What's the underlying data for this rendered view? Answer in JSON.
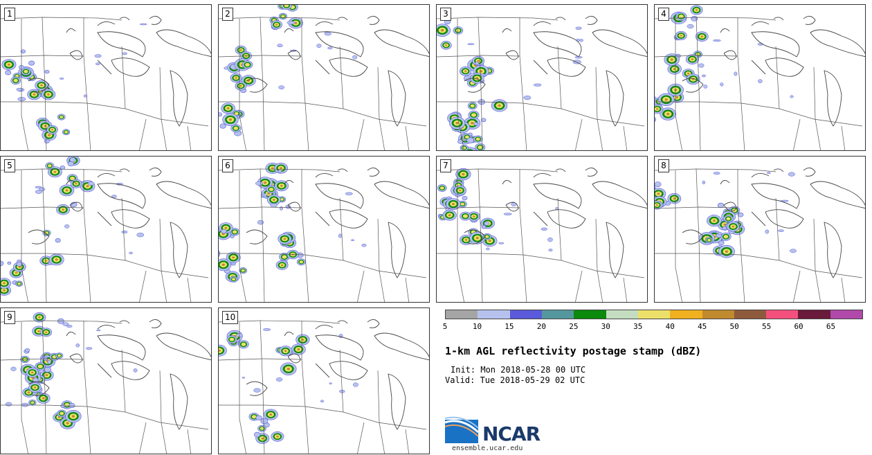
{
  "panels": [
    {
      "label": "1"
    },
    {
      "label": "2"
    },
    {
      "label": "3"
    },
    {
      "label": "4"
    },
    {
      "label": "5"
    },
    {
      "label": "6"
    },
    {
      "label": "7"
    },
    {
      "label": "8"
    },
    {
      "label": "9"
    },
    {
      "label": "10"
    }
  ],
  "colorbar": {
    "colors": [
      "#a5a5a5",
      "#b6c2ed",
      "#5a5ada",
      "#55979e",
      "#0b8a0b",
      "#c4ddc0",
      "#ede06a",
      "#f0b020",
      "#c08a2e",
      "#8e5a3c",
      "#f4507e",
      "#6a1a3a",
      "#b049a9"
    ],
    "ticks": [
      "5",
      "10",
      "15",
      "20",
      "25",
      "30",
      "35",
      "40",
      "45",
      "50",
      "55",
      "60",
      "65"
    ]
  },
  "title": "1-km AGL reflectivity postage stamp (dBZ)",
  "init": "Init: Mon 2018-05-28 00 UTC",
  "valid": "Valid: Tue 2018-05-29 02 UTC",
  "logo": {
    "text": "NCAR",
    "url": "ensemble.ucar.edu"
  }
}
